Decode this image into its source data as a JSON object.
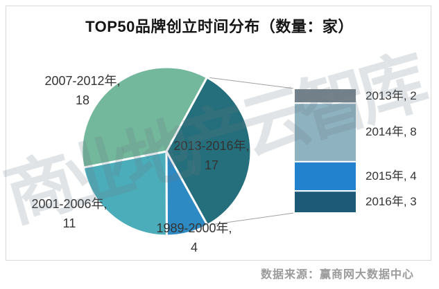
{
  "title": "TOP50品牌创立时间分布（数量：家）",
  "watermark": "商业地产云智库",
  "source": "数据来源：赢商网大数据中心",
  "chart_data": {
    "type": "pie",
    "title": "TOP50品牌创立时间分布（数量：家）",
    "unit": "家",
    "total": 50,
    "start_angle_deg": 28.6,
    "slices": [
      {
        "label": "2013-2016年",
        "value": 17,
        "color": "#256e7b"
      },
      {
        "label": "1989-2000年",
        "value": 4,
        "color": "#2e8ac2"
      },
      {
        "label": "2001-2006年",
        "value": 11,
        "color": "#4badba"
      },
      {
        "label": "2007-2012年",
        "value": 18,
        "color": "#73b79c"
      }
    ],
    "breakdown": {
      "of_slice": "2013-2016年",
      "type": "stacked-bar",
      "total": 17,
      "segments": [
        {
          "label": "2013年",
          "value": 2,
          "color": "#75828c"
        },
        {
          "label": "2014年",
          "value": 8,
          "color": "#8fb2c0"
        },
        {
          "label": "2015年",
          "value": 4,
          "color": "#2382cd"
        },
        {
          "label": "2016年",
          "value": 3,
          "color": "#1d5a78"
        }
      ]
    },
    "legend_position": "none",
    "grid": false
  },
  "labels": {
    "pie": [
      {
        "line1": "2007-2012年,",
        "line2": "18"
      },
      {
        "line1": "2013-2016年,",
        "line2": "17"
      },
      {
        "line1": "2001-2006年,",
        "line2": "11"
      },
      {
        "line1": "1989-2000年,",
        "line2": "4"
      }
    ],
    "bar": [
      "2013年, 2",
      "2014年, 8",
      "2015年, 4",
      "2016年, 3"
    ]
  },
  "colors": {
    "frame_border": "#d9d9d9",
    "connector_line": "#a0a0a0",
    "label_text": "#333333",
    "source_text": "#9b9b9b"
  }
}
